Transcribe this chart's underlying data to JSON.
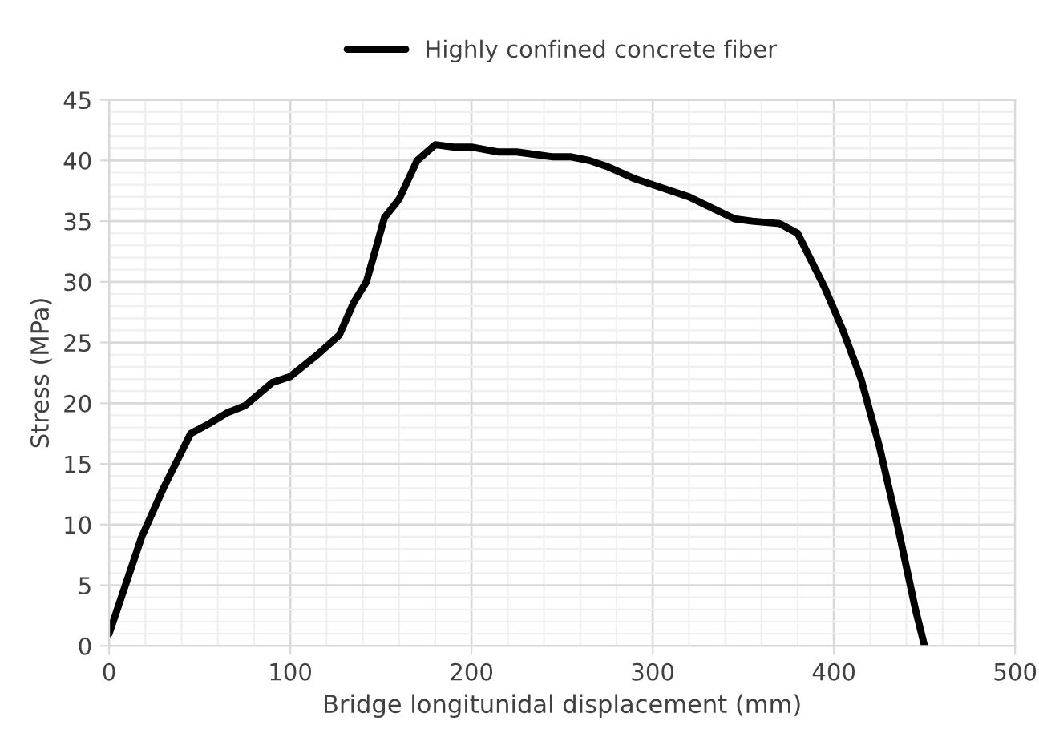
{
  "chart_data": {
    "type": "line",
    "xlabel": "Bridge longitunidal displacement (mm)",
    "ylabel": "Stress (MPa)",
    "xlim": [
      0,
      500
    ],
    "xticks": [
      0,
      100,
      200,
      300,
      400,
      500
    ],
    "ylim": [
      0,
      45
    ],
    "yticks": [
      0,
      5,
      10,
      15,
      20,
      25,
      30,
      35,
      40,
      45
    ],
    "grid": true,
    "legend": "top",
    "marker": "none",
    "line_style": "solid",
    "series": [
      {
        "name": "Highly confined concrete fiber",
        "color": "#000000",
        "x": [
          0,
          18,
          30,
          45,
          55,
          65,
          75,
          90,
          100,
          115,
          127,
          135,
          142,
          152,
          160,
          170,
          180,
          190,
          200,
          215,
          225,
          245,
          255,
          265,
          275,
          290,
          300,
          320,
          345,
          355,
          370,
          380,
          395,
          405,
          415,
          425,
          435,
          445,
          450
        ],
        "values": [
          1,
          9,
          13,
          17.5,
          18.3,
          19.2,
          19.8,
          21.7,
          22.2,
          24,
          25.6,
          28.3,
          30,
          35.3,
          36.8,
          40,
          41.3,
          41.1,
          41.1,
          40.7,
          40.7,
          40.3,
          40.3,
          40,
          39.5,
          38.5,
          38,
          37,
          35.2,
          35,
          34.8,
          34,
          29.5,
          26,
          22,
          16.5,
          10,
          3,
          0
        ]
      }
    ]
  }
}
